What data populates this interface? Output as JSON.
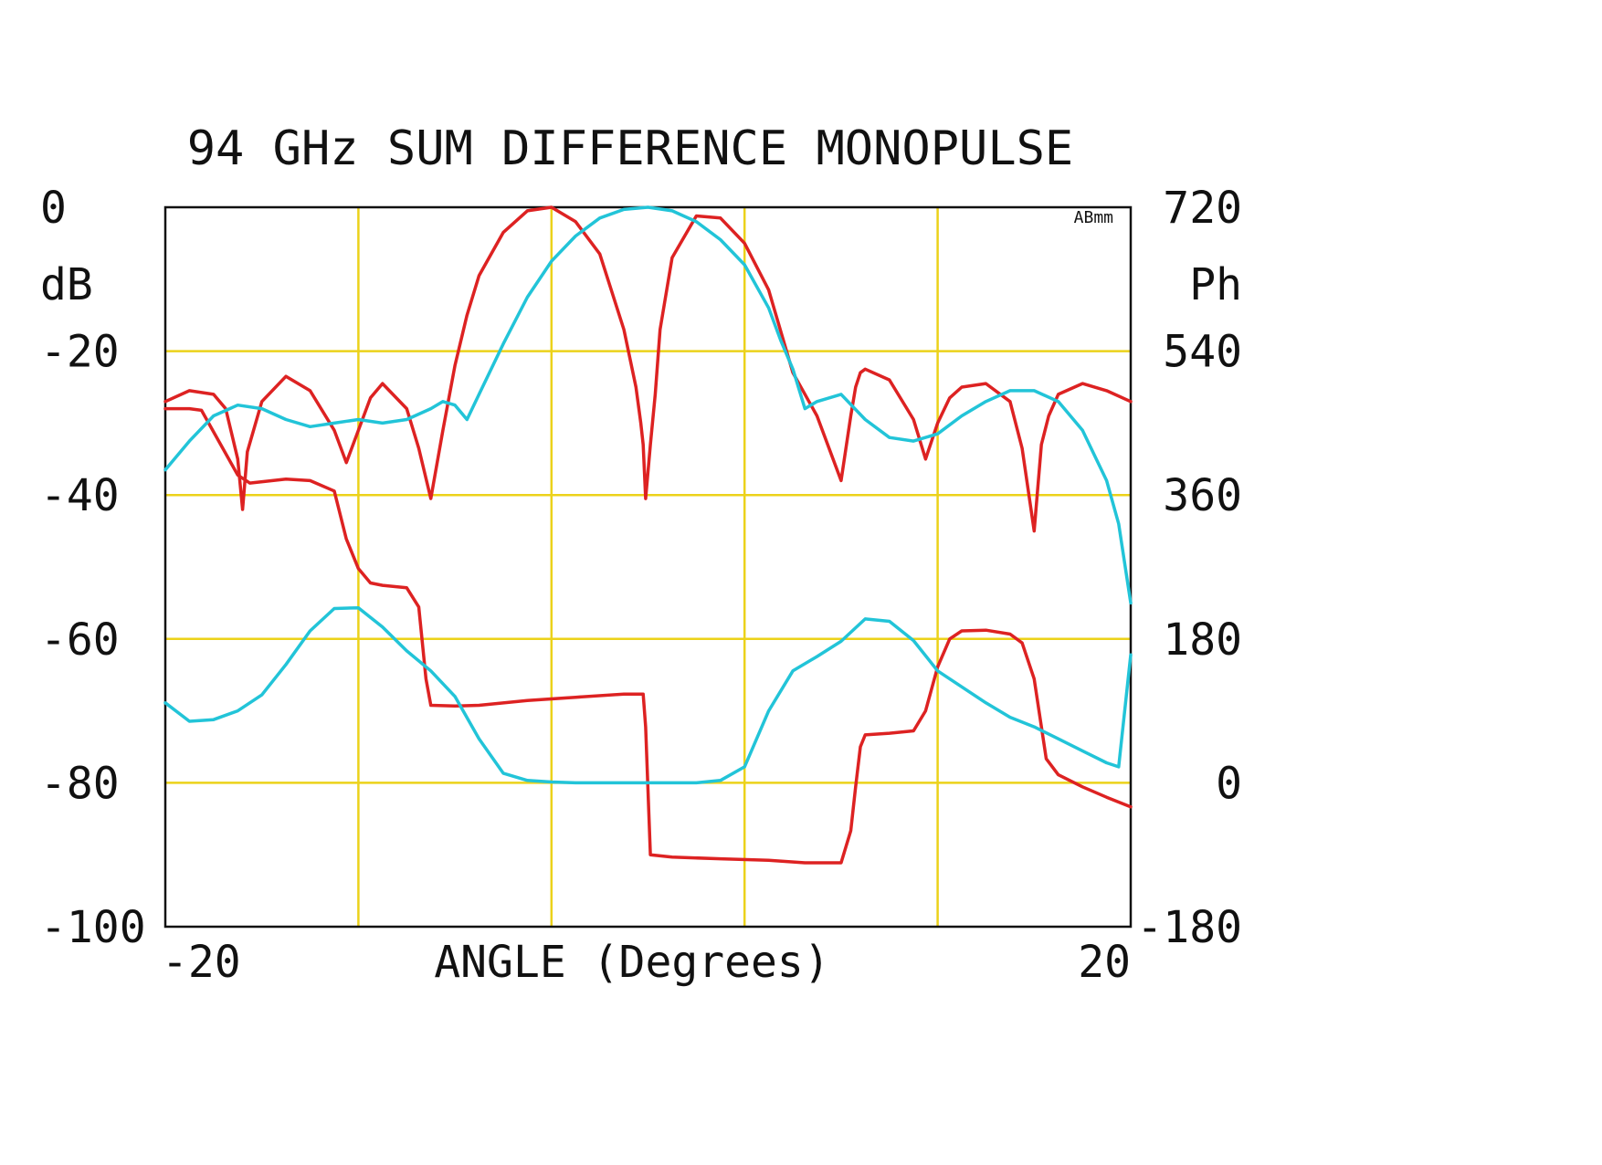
{
  "chart_data": {
    "type": "line",
    "title": "94 GHz SUM DIFFERENCE MONOPULSE",
    "xlabel": "ANGLE (Degrees)",
    "y_left_unit": "dB",
    "y_right_unit": "Ph",
    "corner_tag": "ABmm",
    "xlim": [
      -20,
      20
    ],
    "ylim_left": [
      -100,
      0
    ],
    "ylim_right": [
      -180,
      720
    ],
    "x_tick_labels": [
      {
        "x": -20,
        "label": "-20"
      },
      {
        "x": 20,
        "label": "20"
      }
    ],
    "y_left_tick_labels": [
      {
        "y": 0,
        "label": "0"
      },
      {
        "y": -20,
        "label": "-20"
      },
      {
        "y": -40,
        "label": "-40"
      },
      {
        "y": -60,
        "label": "-60"
      },
      {
        "y": -80,
        "label": "-80"
      },
      {
        "y": -100,
        "label": "-100"
      }
    ],
    "y_right_tick_labels": [
      {
        "y": 720,
        "label": "720"
      },
      {
        "y": 540,
        "label": "540"
      },
      {
        "y": 360,
        "label": "360"
      },
      {
        "y": 180,
        "label": "180"
      },
      {
        "y": 0,
        "label": "0"
      },
      {
        "y": -180,
        "label": "-180"
      }
    ],
    "grid": true,
    "grid_x": [
      -12,
      -4,
      4,
      12
    ],
    "grid_y_left": [
      -20,
      -40,
      -60,
      -80
    ],
    "colors": {
      "difference": "#dd2222",
      "sum": "#22c4d8",
      "grid": "#ecd21a",
      "frame": "#111111"
    },
    "series": [
      {
        "color": "#dd2222",
        "axis": "left",
        "x": [
          -20,
          -19,
          -18,
          -17.5,
          -17,
          -16.8,
          -16.6,
          -16,
          -15,
          -14,
          -13,
          -12.5,
          -12,
          -11.5,
          -11,
          -10,
          -9.5,
          -9,
          -8.5,
          -8,
          -7.5,
          -7,
          -6,
          -5,
          -4,
          -3,
          -2,
          -1,
          -0.5,
          -0.3,
          -0.2,
          -0.1,
          0.1,
          0.3,
          0.5,
          1,
          2,
          3,
          4,
          5,
          6,
          7,
          8,
          8.4,
          8.6,
          8.8,
          9,
          10,
          11,
          11.5,
          12,
          12.5,
          13,
          14,
          15,
          15.5,
          16,
          16.3,
          16.6,
          17,
          18,
          19,
          20
        ],
        "values": [
          -27,
          -25.5,
          -26,
          -28,
          -35,
          -42,
          -34,
          -27,
          -23.5,
          -25.5,
          -31,
          -35.5,
          -31,
          -26.5,
          -24.5,
          -28,
          -33.5,
          -40.5,
          -31,
          -22,
          -15,
          -9.5,
          -3.5,
          -0.5,
          0,
          -2,
          -6.5,
          -17,
          -25,
          -30,
          -33,
          -40.5,
          -33,
          -26,
          -17,
          -7,
          -1.2,
          -1.5,
          -5,
          -11.5,
          -23,
          -29,
          -38,
          -29,
          -25,
          -23,
          -22.5,
          -24,
          -29.5,
          -35,
          -30,
          -26.5,
          -25,
          -24.5,
          -27,
          -33.5,
          -45,
          -33,
          -29,
          -26,
          -24.5,
          -25.5,
          -27
        ]
      },
      {
        "color": "#dd2222",
        "axis": "right",
        "x": [
          -20,
          -19,
          -18.5,
          -17,
          -16.5,
          -15,
          -14,
          -13,
          -12.5,
          -12,
          -11.5,
          -11,
          -10,
          -9.5,
          -9.2,
          -9,
          -8,
          -7,
          -5,
          -3,
          -1,
          -0.2,
          -0.1,
          0.1,
          1,
          3,
          5,
          6.5,
          8,
          8.4,
          8.6,
          8.8,
          9,
          10,
          11,
          11.5,
          12,
          12.5,
          13,
          14,
          15,
          15.5,
          16,
          16.5,
          17,
          18,
          19,
          20
        ],
        "values": [
          468,
          468,
          466,
          385,
          375,
          380,
          378,
          365,
          305,
          268,
          250,
          247,
          244,
          220,
          130,
          97,
          96,
          97,
          103,
          107,
          111,
          111,
          70,
          -90,
          -93,
          -95,
          -97,
          -100,
          -100,
          -60,
          -5,
          45,
          60,
          62,
          65,
          90,
          145,
          180,
          190,
          191,
          186,
          175,
          130,
          30,
          10,
          -5,
          -18,
          -30
        ]
      },
      {
        "color": "#22c4d8",
        "axis": "left",
        "x": [
          -20,
          -19,
          -18,
          -17,
          -16,
          -15,
          -14,
          -13,
          -12,
          -11,
          -10,
          -9,
          -8.5,
          -8,
          -7.5,
          -7,
          -6,
          -5,
          -4,
          -3,
          -2,
          -1,
          0,
          1,
          2,
          3,
          4,
          5,
          5.5,
          6,
          6.5,
          7,
          8,
          9,
          10,
          11,
          12,
          13,
          14,
          15,
          16,
          17,
          18,
          19,
          19.5,
          20
        ],
        "values": [
          -36.5,
          -32.5,
          -29,
          -27.5,
          -28,
          -29.5,
          -30.5,
          -30,
          -29.5,
          -30,
          -29.5,
          -28,
          -27,
          -27.5,
          -29.5,
          -26,
          -19,
          -12.5,
          -7.5,
          -4,
          -1.5,
          -0.3,
          0,
          -0.5,
          -2,
          -4.5,
          -8,
          -14,
          -18.5,
          -22.5,
          -28,
          -27,
          -26,
          -29.5,
          -32,
          -32.5,
          -31.5,
          -29,
          -27,
          -25.5,
          -25.5,
          -27,
          -31,
          -38,
          -44,
          -55
        ]
      },
      {
        "color": "#22c4d8",
        "axis": "right",
        "x": [
          -20,
          -19,
          -18,
          -17,
          -16,
          -15,
          -14,
          -13,
          -12,
          -11,
          -10,
          -9,
          -8,
          -7,
          -6,
          -5,
          -4,
          -3,
          -2,
          -1,
          0,
          1,
          2,
          3,
          4,
          5,
          6,
          7,
          8,
          9,
          10,
          11,
          12,
          13,
          14,
          15,
          16,
          17,
          18,
          19,
          19.5,
          20
        ],
        "values": [
          100,
          77,
          79,
          90,
          110,
          148,
          190,
          218,
          219,
          195,
          165,
          140,
          108,
          55,
          12,
          3,
          1,
          0,
          0,
          0,
          0,
          0,
          0,
          3,
          20,
          90,
          140,
          158,
          177,
          205,
          202,
          178,
          140,
          120,
          100,
          82,
          70,
          55,
          40,
          25,
          20,
          160
        ]
      }
    ]
  }
}
